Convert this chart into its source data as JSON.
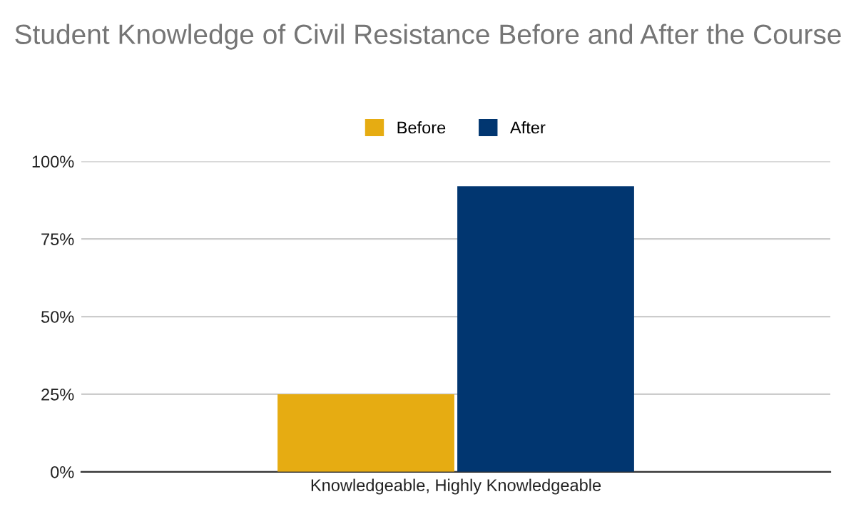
{
  "chart_data": {
    "type": "bar",
    "title": "Student Knowledge of Civil Resistance Before and After the Course",
    "categories": [
      "Knowledgeable, Highly Knowledgeable"
    ],
    "series": [
      {
        "name": "Before",
        "color": "#e6ac12",
        "values": [
          25
        ]
      },
      {
        "name": "After",
        "color": "#013670",
        "values": [
          92
        ]
      }
    ],
    "ylim": [
      0,
      100
    ],
    "yticks": [
      {
        "value": 0,
        "label": "0%"
      },
      {
        "value": 25,
        "label": "25%"
      },
      {
        "value": 50,
        "label": "50%"
      },
      {
        "value": 75,
        "label": "75%"
      },
      {
        "value": 100,
        "label": "100%"
      }
    ],
    "grid": "y",
    "legend": "top"
  }
}
